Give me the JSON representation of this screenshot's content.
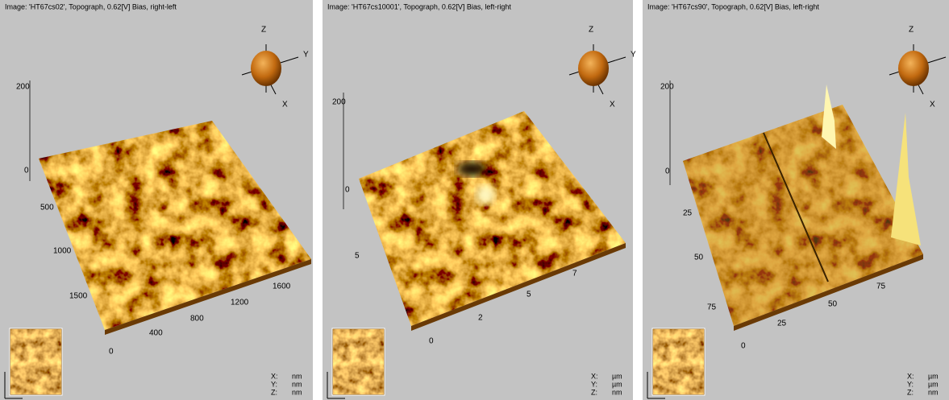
{
  "panels": [
    {
      "title": "Image: 'HT67cs02', Topograph, 0.62[V] Bias, right-left",
      "orientation": {
        "z": "Z",
        "y": "Y",
        "x": "X"
      },
      "left_labels": [
        "200",
        "0",
        "500",
        "1000",
        "1500"
      ],
      "bottom_labels": [
        "0",
        "400",
        "800",
        "1200",
        "1600"
      ],
      "units": [
        {
          "axis": "X:",
          "unit": "nm"
        },
        {
          "axis": "Y:",
          "unit": "nm"
        },
        {
          "axis": "Z:",
          "unit": "nm"
        }
      ]
    },
    {
      "title": "Image: 'HT67cs10001', Topograph, 0.62[V] Bias, left-right",
      "orientation": {
        "z": "Z",
        "y": "Y",
        "x": "X"
      },
      "left_labels": [
        "200",
        "0",
        "5"
      ],
      "bottom_labels": [
        "0",
        "2",
        "5",
        "7"
      ],
      "units": [
        {
          "axis": "X:",
          "unit": "µm"
        },
        {
          "axis": "Y:",
          "unit": "µm"
        },
        {
          "axis": "Z:",
          "unit": "nm"
        }
      ]
    },
    {
      "title": "Image: 'HT67cs90', Topograph, 0.62[V] Bias, left-right",
      "orientation": {
        "z": "Z",
        "y": "Y",
        "x": "X"
      },
      "left_labels": [
        "200",
        "0",
        "25",
        "50",
        "75"
      ],
      "bottom_labels": [
        "0",
        "25",
        "50",
        "75"
      ],
      "units": [
        {
          "axis": "X:",
          "unit": "µm"
        },
        {
          "axis": "Y:",
          "unit": "µm"
        },
        {
          "axis": "Z:",
          "unit": "nm"
        }
      ]
    }
  ]
}
